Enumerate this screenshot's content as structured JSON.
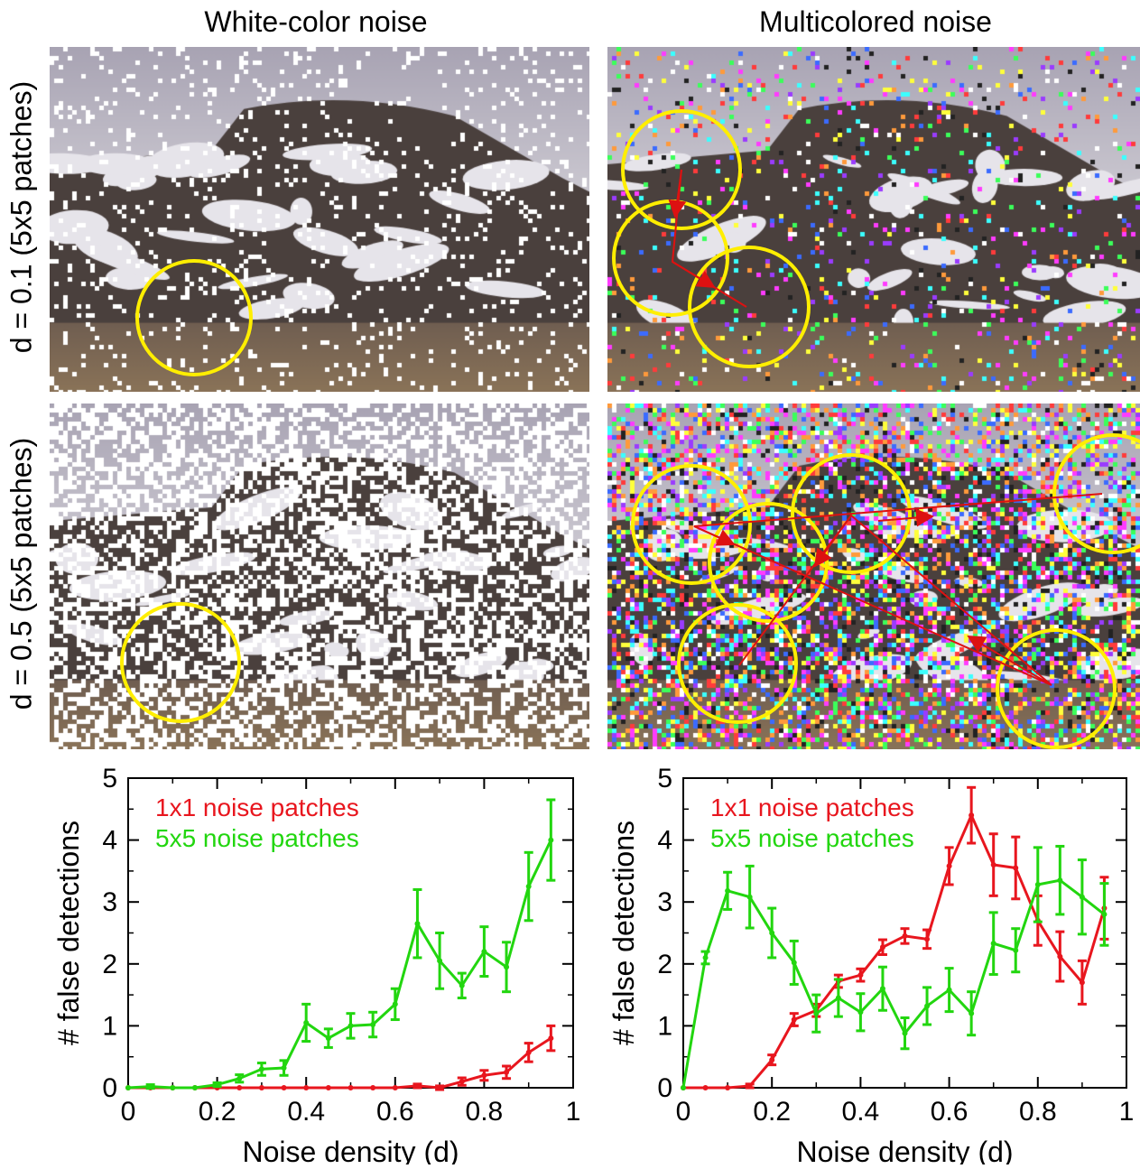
{
  "column_titles": [
    "White-color noise",
    "Multicolored noise"
  ],
  "row_labels": [
    "d = 0.1 (5x5 patches)",
    "d = 0.5 (5x5 patches)"
  ],
  "colors": {
    "noise_1x1": "#e8161e",
    "noise_5x5": "#22d60f",
    "circle": "#ffee00",
    "arrow": "#dd1111"
  },
  "chart_data": [
    {
      "type": "line",
      "xlabel": "Noise density (d)",
      "ylabel": "# false detections",
      "xlim": [
        0,
        1
      ],
      "ylim": [
        0,
        5
      ],
      "xticks": [
        "0",
        "0.2",
        "0.4",
        "0.6",
        "0.8",
        "1"
      ],
      "yticks": [
        "0",
        "1",
        "2",
        "3",
        "4",
        "5"
      ],
      "legend_position": "top-left",
      "reference_line_y": 0,
      "x": [
        0,
        0.05,
        0.1,
        0.15,
        0.2,
        0.25,
        0.3,
        0.35,
        0.4,
        0.45,
        0.5,
        0.55,
        0.6,
        0.65,
        0.7,
        0.75,
        0.8,
        0.85,
        0.9,
        0.95
      ],
      "series": [
        {
          "name": "1x1 noise patches",
          "color": "#e8161e",
          "values": [
            0,
            0,
            0,
            0,
            0,
            0,
            0,
            0,
            0,
            0,
            0,
            0,
            0,
            0.03,
            0,
            0.1,
            0.2,
            0.25,
            0.57,
            0.8
          ],
          "errors": [
            0,
            0,
            0,
            0,
            0,
            0,
            0,
            0,
            0,
            0,
            0,
            0,
            0,
            0.03,
            0.03,
            0.06,
            0.08,
            0.1,
            0.15,
            0.2
          ]
        },
        {
          "name": "5x5 noise patches",
          "color": "#22d60f",
          "values": [
            0,
            0.02,
            0,
            0,
            0.05,
            0.15,
            0.3,
            0.32,
            1.05,
            0.8,
            1,
            1.02,
            1.35,
            2.65,
            2.05,
            1.65,
            2.2,
            1.95,
            3.25,
            4
          ],
          "errors": [
            0,
            0.03,
            0,
            0,
            0.03,
            0.06,
            0.1,
            0.12,
            0.3,
            0.15,
            0.2,
            0.2,
            0.25,
            0.55,
            0.45,
            0.2,
            0.4,
            0.4,
            0.55,
            0.65
          ]
        }
      ]
    },
    {
      "type": "line",
      "xlabel": "Noise density (d)",
      "ylabel": "# false detections",
      "xlim": [
        0,
        1
      ],
      "ylim": [
        0,
        5
      ],
      "xticks": [
        "0",
        "0.2",
        "0.4",
        "0.6",
        "0.8",
        "1"
      ],
      "yticks": [
        "0",
        "1",
        "2",
        "3",
        "4",
        "5"
      ],
      "legend_position": "top-left",
      "x": [
        0,
        0.05,
        0.1,
        0.15,
        0.2,
        0.25,
        0.3,
        0.35,
        0.4,
        0.45,
        0.5,
        0.55,
        0.6,
        0.65,
        0.7,
        0.75,
        0.8,
        0.85,
        0.9,
        0.95
      ],
      "series": [
        {
          "name": "1x1 noise patches",
          "color": "#e8161e",
          "values": [
            0,
            0,
            0,
            0.03,
            0.45,
            1.1,
            1.25,
            1.72,
            1.82,
            2.27,
            2.45,
            2.4,
            3.58,
            4.4,
            3.6,
            3.55,
            2.7,
            2.12,
            1.7,
            2.9
          ],
          "errors": [
            0,
            0,
            0,
            0.03,
            0.08,
            0.1,
            0.1,
            0.1,
            0.1,
            0.12,
            0.12,
            0.15,
            0.3,
            0.45,
            0.5,
            0.5,
            0.4,
            0.4,
            0.35,
            0.5
          ]
        },
        {
          "name": "5x5 noise patches",
          "color": "#22d60f",
          "values": [
            0,
            2.1,
            3.18,
            3.08,
            2.5,
            2.02,
            1.2,
            1.45,
            1.22,
            1.6,
            0.88,
            1.32,
            1.58,
            1.2,
            2.33,
            2.22,
            3.28,
            3.35,
            3.08,
            2.8
          ],
          "errors": [
            0,
            0.1,
            0.3,
            0.5,
            0.4,
            0.35,
            0.3,
            0.3,
            0.3,
            0.35,
            0.25,
            0.3,
            0.35,
            0.35,
            0.5,
            0.35,
            0.6,
            0.55,
            0.6,
            0.5
          ]
        }
      ]
    }
  ]
}
